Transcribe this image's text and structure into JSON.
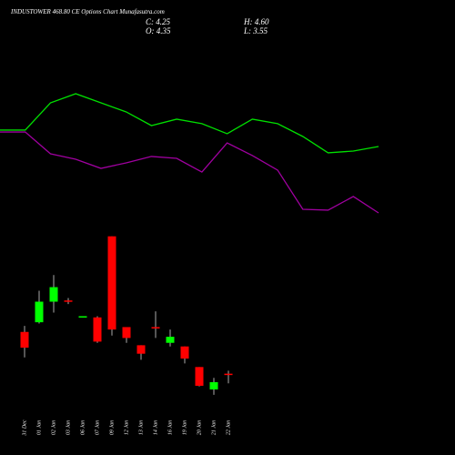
{
  "header": {
    "title": "INDUSTOWER 468.80 CE Options Chart Munafasutra.com",
    "close": "C: 4.25",
    "high": "H: 4.60",
    "open": "O: 4.35",
    "low": "L: 3.55"
  },
  "chart_data": [
    {
      "type": "line",
      "categories": [
        null,
        null,
        null,
        null,
        null,
        null,
        null,
        null,
        null,
        null,
        null,
        null,
        null,
        null,
        null,
        null
      ],
      "ylim": [
        0,
        100
      ],
      "series": [
        {
          "color": "#00e000",
          "values": [
            66.9,
            66.9,
            85.6,
            91.9,
            85.6,
            79.4,
            70,
            74.4,
            71.3,
            64.4,
            74.4,
            71.3,
            62.5,
            51.3,
            52.5,
            55.6
          ]
        },
        {
          "color": "#a000a0",
          "values": [
            65.6,
            65.6,
            50.6,
            46.9,
            40.6,
            44.4,
            48.8,
            47.5,
            38.1,
            58.1,
            49.4,
            39.4,
            12.5,
            11.9,
            21.3,
            10
          ]
        }
      ]
    },
    {
      "type": "candlestick",
      "categories": [
        "31 Dec",
        "01 Jan",
        "02 Jan",
        "03 Jan",
        "06 Jan",
        "07 Jan",
        "09 Jan",
        "12 Jan",
        "13 Jan",
        "14 Jan",
        "16 Jan",
        "19 Jan",
        "20 Jan",
        "21 Jan",
        "22 Jan"
      ],
      "open": [
        7.8,
        8.6,
        10.3,
        10.4,
        9.0,
        9.0,
        15.7,
        8.2,
        6.7,
        8.2,
        6.9,
        6.6,
        4.9,
        3.05,
        4.35
      ],
      "high": [
        8.3,
        11.2,
        12.5,
        10.6,
        9.1,
        9.1,
        15.7,
        8.2,
        6.7,
        9.5,
        8.0,
        6.6,
        4.9,
        4.0,
        4.6
      ],
      "low": [
        5.7,
        8.5,
        9.4,
        10.1,
        9.0,
        6.9,
        7.5,
        6.9,
        5.5,
        7.3,
        6.6,
        5.2,
        3.3,
        2.6,
        3.55
      ],
      "close": [
        6.5,
        10.3,
        11.5,
        10.3,
        9.1,
        7.0,
        8.0,
        7.3,
        6.0,
        8.1,
        7.4,
        5.6,
        3.35,
        3.65,
        4.25
      ],
      "up_color": "#00ff00",
      "down_color": "#ff0000",
      "ylim": [
        0,
        17
      ]
    }
  ]
}
